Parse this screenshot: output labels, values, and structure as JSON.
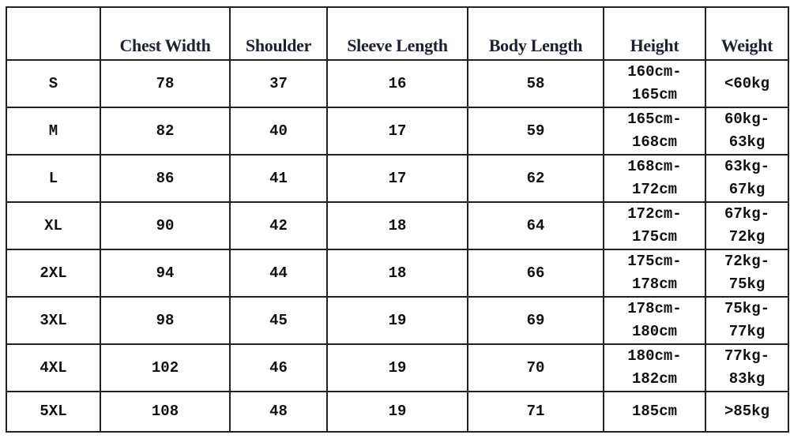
{
  "table": {
    "headers": [
      "",
      "Chest Width",
      "Shoulder",
      "Sleeve Length",
      "Body Length",
      "Height",
      "Weight"
    ],
    "rows": [
      [
        "S",
        "78",
        "37",
        "16",
        "58",
        "160cm-\n165cm",
        "<60kg"
      ],
      [
        "M",
        "82",
        "40",
        "17",
        "59",
        "165cm-\n168cm",
        "60kg-\n63kg"
      ],
      [
        "L",
        "86",
        "41",
        "17",
        "62",
        "168cm-\n172cm",
        "63kg-\n67kg"
      ],
      [
        "XL",
        "90",
        "42",
        "18",
        "64",
        "172cm-\n175cm",
        "67kg-\n72kg"
      ],
      [
        "2XL",
        "94",
        "44",
        "18",
        "66",
        "175cm-\n178cm",
        "72kg-\n75kg"
      ],
      [
        "3XL",
        "98",
        "45",
        "19",
        "69",
        "178cm-\n180cm",
        "75kg-\n77kg"
      ],
      [
        "4XL",
        "102",
        "46",
        "19",
        "70",
        "180cm-\n182cm",
        "77kg-\n83kg"
      ],
      [
        "5XL",
        "108",
        "48",
        "19",
        "71",
        "185cm",
        ">85kg"
      ]
    ]
  }
}
